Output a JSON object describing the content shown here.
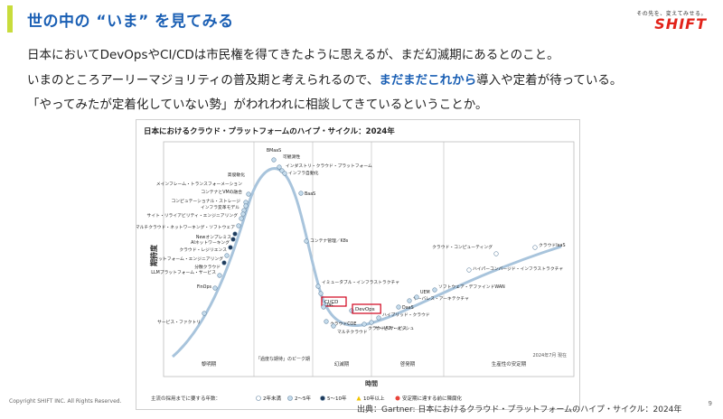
{
  "slide": {
    "title": "世の中の “いま” を見てみる",
    "logo_tagline": "その先を、変えてみせる。",
    "logo_name": "SHIFT",
    "line1": "日本においてDevOpsやCI/CDは市民権を得てきたように思えるが、まだ幻滅期にあるとのこと。",
    "line2_pre": "いまのところアーリーマジョリティの普及期と考えられるので、",
    "line2_hl": "まだまだこれから",
    "line2_post": "導入や定着が待っている。",
    "line3": "「やってみたが定着化していない勢」がわれわれに相談してきているということか。",
    "copyright": "Copyright SHIFT INC. All Rights Reserved.",
    "source": "出典：Gartner: 日本におけるクラウド・プラットフォームのハイプ・サイクル：2024年",
    "page_number": "9"
  },
  "figure": {
    "title": "日本におけるクラウド・プラットフォームのハイプ・サイクル：2024年",
    "y_axis_label": "期待度",
    "x_axis_label": "時間",
    "date_note": "2024年7月 現在",
    "phases": [
      "黎明期",
      "「過度な期待」のピーク期",
      "幻滅期",
      "啓発期",
      "生産性の安定期"
    ],
    "legend_prefix": "主流の採用までに要する年数：",
    "legend_items": [
      {
        "label": "2年未満",
        "kind": "white"
      },
      {
        "label": "2～5年",
        "kind": "light"
      },
      {
        "label": "5～10年",
        "kind": "dark"
      },
      {
        "label": "10年以上",
        "kind": "triangle"
      },
      {
        "label": "安定期に達する前に陳腐化",
        "kind": "x"
      }
    ],
    "technologies": [
      {
        "label": "高俊敏化",
        "kind": "light"
      },
      {
        "label": "BMaaS",
        "kind": "light"
      },
      {
        "label": "メインフレーム・トランスフォーメーション",
        "kind": "light"
      },
      {
        "label": "コンテナとVMの融合",
        "kind": "light"
      },
      {
        "label": "コンピュテーショナル・ストレージ",
        "kind": "light"
      },
      {
        "label": "インフラ変革モデル",
        "kind": "light"
      },
      {
        "label": "サイト・リライアビリティ・エンジニアリング",
        "kind": "light"
      },
      {
        "label": "マルチクラウド・ネットワーキング・ソフトウェア",
        "kind": "light"
      },
      {
        "label": "Newオンプレミス",
        "kind": "dark"
      },
      {
        "label": "AIネットワーキング",
        "kind": "dark"
      },
      {
        "label": "クラウド・レジリエンス",
        "kind": "dark"
      },
      {
        "label": "プラットフォーム・エンジニアリング",
        "kind": "light"
      },
      {
        "label": "分散クラウド",
        "kind": "dark"
      },
      {
        "label": "LLMプラットフォーム・サービス",
        "kind": "light"
      },
      {
        "label": "FinOps",
        "kind": "light"
      },
      {
        "label": "サービス・ファクトリ",
        "kind": "light"
      },
      {
        "label": "可観測性",
        "kind": "light"
      },
      {
        "label": "インダストリ・クラウド・プラットフォーム",
        "kind": "light"
      },
      {
        "label": "インフラ自動化",
        "kind": "light"
      },
      {
        "label": "BaaS",
        "kind": "light"
      },
      {
        "label": "コンテナ管理／K8s",
        "kind": "light"
      },
      {
        "label": "イミュータブル・インフラストラクチャ",
        "kind": "light"
      },
      {
        "label": "CI/CD",
        "kind": "light"
      },
      {
        "label": "IaC",
        "kind": "light"
      },
      {
        "label": "DevOps",
        "kind": "light"
      },
      {
        "label": "クラウドCOE",
        "kind": "light"
      },
      {
        "label": "マルチクラウド",
        "kind": "light"
      },
      {
        "label": "クラウドAIサービス",
        "kind": "light"
      },
      {
        "label": "サービス・メッシュ",
        "kind": "light"
      },
      {
        "label": "ハイブリッド・クラウド",
        "kind": "light"
      },
      {
        "label": "DaaS",
        "kind": "light"
      },
      {
        "label": "サーバレス・アーキテクチャ",
        "kind": "light"
      },
      {
        "label": "UEM",
        "kind": "light"
      },
      {
        "label": "ソフトウェア・デファインドWAN",
        "kind": "light"
      },
      {
        "label": "ハイパーコンバージド・インフラストラクチャ",
        "kind": "white"
      },
      {
        "label": "クラウド・コンピューティング",
        "kind": "white"
      },
      {
        "label": "クラウドIaaS",
        "kind": "white"
      }
    ],
    "highlight_color": "#d0021b",
    "curve_color": "#a8c4dc"
  }
}
